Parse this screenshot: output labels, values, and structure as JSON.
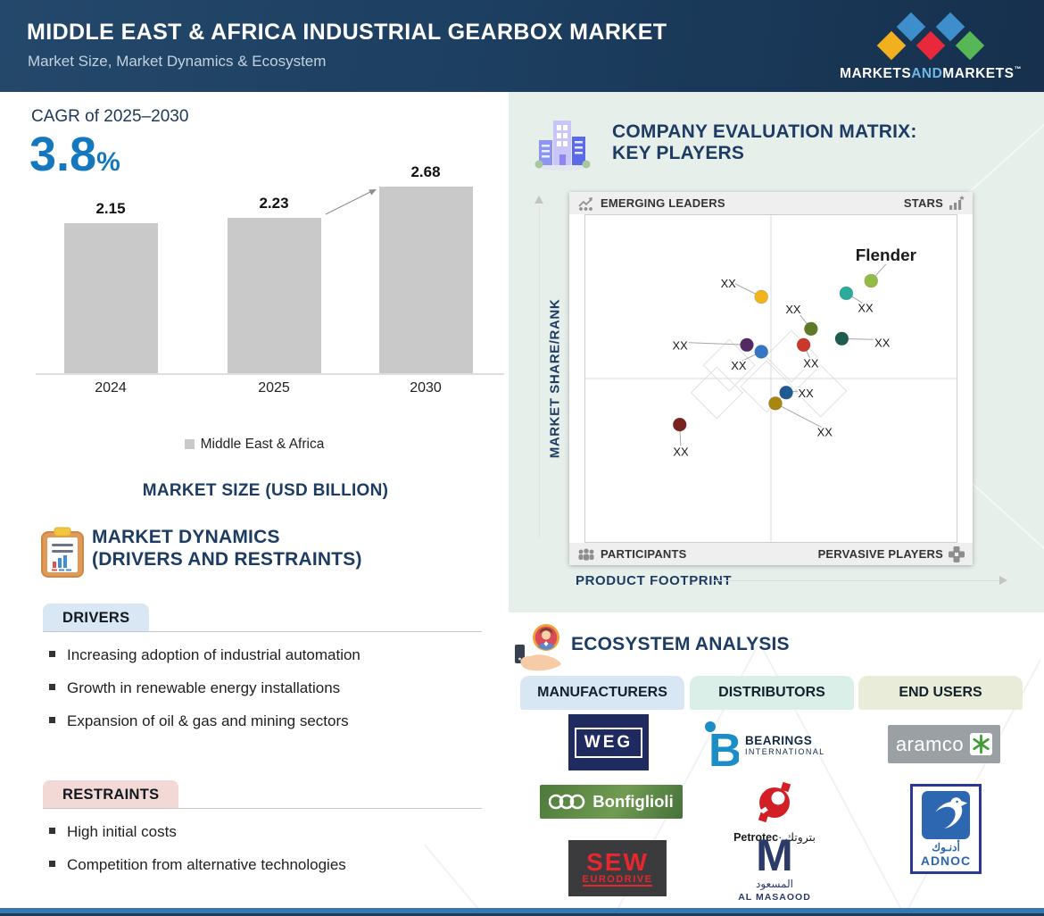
{
  "header": {
    "title": "MIDDLE EAST & AFRICA INDUSTRIAL GEARBOX MARKET",
    "subtitle": "Market Size, Market Dynamics & Ecosystem",
    "logo": {
      "part1": "MARKETS",
      "part2": "AND",
      "part3": "MARKETS",
      "tm": "™",
      "diamond_colors": [
        "#f2b01e",
        "#3e8ecc",
        "#e8293b",
        "#3e8ecc",
        "#57b757"
      ]
    }
  },
  "cagr": {
    "label": "CAGR of 2025–2030",
    "value": "3.8",
    "unit": "%"
  },
  "chart_data": [
    {
      "type": "bar",
      "title": "MARKET SIZE (USD BILLION)",
      "categories": [
        "2024",
        "2025",
        "2030"
      ],
      "values": [
        2.15,
        2.23,
        2.68
      ],
      "value_labels": [
        "2.15",
        "2.23",
        "2.68"
      ],
      "legend": [
        "Middle East & Africa"
      ],
      "bar_color": "#c9c9c9",
      "xlabel": "",
      "ylabel": "Market Size (USD Billion)",
      "ylim": [
        0,
        3
      ],
      "grid": false,
      "legend_position": "bottom"
    },
    {
      "type": "scatter",
      "title": "COMPANY EVALUATION MATRIX: KEY PLAYERS",
      "xlabel": "PRODUCT FOOTPRINT",
      "ylabel": "MARKET SHARE/RANK",
      "quadrant_labels": {
        "top_left": "EMERGING LEADERS",
        "top_right": "STARS",
        "bottom_left": "PARTICIPANTS",
        "bottom_right": "PERVASIVE PLAYERS"
      },
      "points": [
        {
          "x": 0.474,
          "y": 0.25,
          "color": "#f0b41f",
          "label": "XX",
          "lx": 0.385,
          "ly": 0.21
        },
        {
          "x": 0.77,
          "y": 0.201,
          "color": "#93bb45",
          "label": "Flender",
          "lx": 0.81,
          "ly": 0.128,
          "emphasis": true
        },
        {
          "x": 0.703,
          "y": 0.239,
          "color": "#2bab9b",
          "label": "XX",
          "lx": 0.755,
          "ly": 0.285
        },
        {
          "x": 0.608,
          "y": 0.348,
          "color": "#5e7a26",
          "label": "XX",
          "lx": 0.56,
          "ly": 0.29
        },
        {
          "x": 0.691,
          "y": 0.378,
          "color": "#1e5c50",
          "label": "XX",
          "lx": 0.8,
          "ly": 0.392
        },
        {
          "x": 0.588,
          "y": 0.397,
          "color": "#c8392c",
          "label": "XX",
          "lx": 0.608,
          "ly": 0.455
        },
        {
          "x": 0.435,
          "y": 0.397,
          "color": "#542a66",
          "label": "XX",
          "lx": 0.255,
          "ly": 0.4
        },
        {
          "x": 0.474,
          "y": 0.418,
          "color": "#3577c2",
          "label": "XX",
          "lx": 0.413,
          "ly": 0.462
        },
        {
          "x": 0.541,
          "y": 0.543,
          "color": "#1f5a94",
          "label": "XX",
          "lx": 0.594,
          "ly": 0.546
        },
        {
          "x": 0.512,
          "y": 0.576,
          "color": "#a8860f",
          "label": "XX",
          "lx": 0.645,
          "ly": 0.665
        },
        {
          "x": 0.254,
          "y": 0.641,
          "color": "#7a2220",
          "label": "XX",
          "lx": 0.257,
          "ly": 0.725
        }
      ]
    }
  ],
  "market_dynamics": {
    "title_line1": "MARKET DYNAMICS",
    "title_line2": "(DRIVERS AND RESTRAINTS)",
    "drivers": {
      "label": "DRIVERS",
      "items": [
        "Increasing adoption of industrial automation",
        "Growth in renewable energy installations",
        "Expansion of oil & gas and mining sectors"
      ]
    },
    "restraints": {
      "label": "RESTRAINTS",
      "items": [
        "High initial costs",
        "Competition from alternative technologies"
      ]
    }
  },
  "evaluation": {
    "title_line1": "COMPANY EVALUATION MATRIX:",
    "title_line2": "KEY PLAYERS"
  },
  "ecosystem": {
    "title": "ECOSYSTEM ANALYSIS",
    "tabs": [
      {
        "label": "MANUFACTURERS",
        "color": "#d9e6f3"
      },
      {
        "label": "DISTRIBUTORS",
        "color": "#d9efe7"
      },
      {
        "label": "END USERS",
        "color": "#e9ecd9"
      }
    ],
    "logos": {
      "weg": "WEG",
      "bearings": {
        "initial": "B",
        "line1": "BEARINGS",
        "line2": "INTERNATIONAL"
      },
      "aramco": "aramco",
      "bonfiglioli": "Bonfiglioli",
      "petrotec": {
        "latin": "Petrotec",
        "arabic": "بتروتك"
      },
      "adnoc": {
        "arabic": "أدنـوك",
        "latin": "ADNOC"
      },
      "sew": {
        "line1": "SEW",
        "line2": "EURODRIVE"
      },
      "masaood": {
        "initial": "M",
        "arabic": "المسعود",
        "latin": "AL MASAOOD"
      }
    }
  }
}
